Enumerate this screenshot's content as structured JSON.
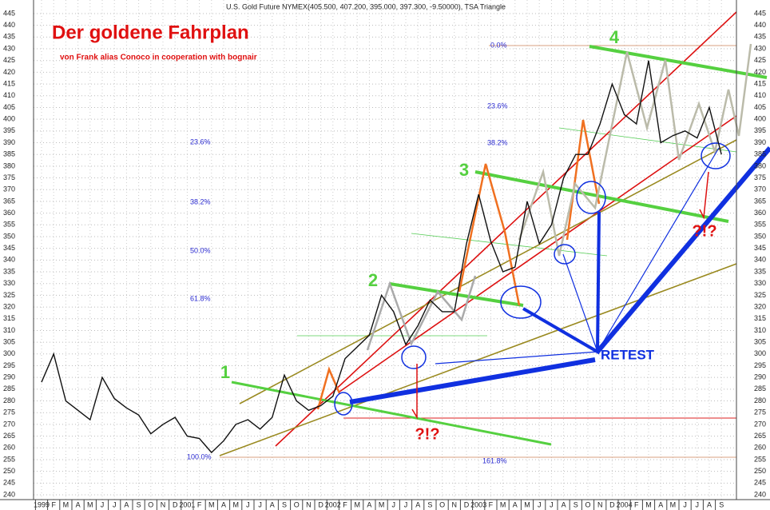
{
  "chart_data": {
    "type": "line",
    "header": "U.S. Gold Future    NYMEX(405.500, 407.200, 395.000, 397.300, -9.50000), TSA Triangle",
    "title": "Der goldene Fahrplan",
    "subtitle": "von Frank alias Conoco in cooperation with bognair",
    "categories": [
      "1999",
      "F",
      "M",
      "A",
      "M",
      "J",
      "J",
      "A",
      "S",
      "O",
      "N",
      "D",
      "2001",
      "F",
      "M",
      "A",
      "M",
      "J",
      "J",
      "A",
      "S",
      "O",
      "N",
      "D",
      "2002",
      "F",
      "M",
      "A",
      "M",
      "J",
      "J",
      "A",
      "S",
      "O",
      "N",
      "D",
      "2003",
      "F",
      "M",
      "A",
      "M",
      "J",
      "J",
      "A",
      "S",
      "O",
      "N",
      "D",
      "2004",
      "F",
      "M",
      "A",
      "M",
      "J",
      "J",
      "A",
      "S"
    ],
    "series": [
      {
        "name": "U.S. Gold Future",
        "color": "#111111",
        "values": [
          288,
          300,
          280,
          276,
          272,
          290,
          281,
          277,
          274,
          266,
          270,
          273,
          265,
          264,
          258,
          263,
          270,
          272,
          268,
          273,
          291,
          280,
          276,
          278,
          282,
          298,
          303,
          308,
          325,
          318,
          304,
          312,
          323,
          318,
          318,
          347,
          368,
          348,
          335,
          337,
          365,
          347,
          355,
          375,
          385,
          385,
          398,
          415,
          402,
          398,
          425,
          390,
          393,
          395,
          392,
          405,
          385
        ]
      }
    ],
    "ylim": [
      240,
      445
    ],
    "yticks": [
      240,
      245,
      250,
      255,
      260,
      265,
      270,
      275,
      280,
      285,
      290,
      295,
      300,
      305,
      310,
      315,
      320,
      325,
      330,
      335,
      340,
      345,
      350,
      355,
      360,
      365,
      370,
      375,
      380,
      385,
      390,
      395,
      400,
      405,
      410,
      415,
      420,
      425,
      430,
      435,
      440,
      445
    ],
    "grid": true,
    "annotations": [
      "1",
      "2",
      "3",
      "4",
      "RETEST",
      "?!?",
      "?!?"
    ],
    "fib_labels": [
      "23.6%",
      "38.2%",
      "50.0%",
      "61.8%",
      "100.0%",
      "0.0%",
      "23.6%",
      "38.2%",
      "161.8%"
    ]
  }
}
